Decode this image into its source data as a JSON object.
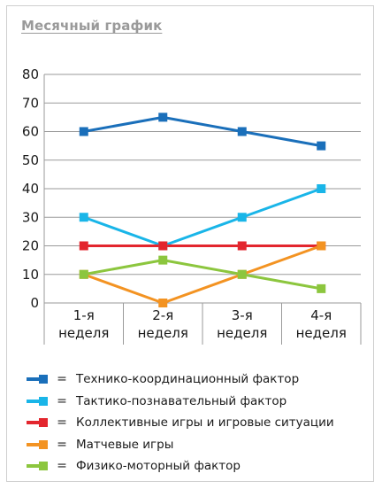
{
  "chart_data": {
    "type": "line",
    "title": "Месячный график",
    "categories": [
      "1-я неделя",
      "2-я неделя",
      "3-я неделя",
      "4-я неделя"
    ],
    "category_lines": [
      [
        "1-я",
        "неделя"
      ],
      [
        "2-я",
        "неделя"
      ],
      [
        "3-я",
        "неделя"
      ],
      [
        "4-я",
        "неделя"
      ]
    ],
    "ylim": [
      0,
      80
    ],
    "yticks": [
      0,
      10,
      20,
      30,
      40,
      50,
      60,
      70,
      80
    ],
    "grid": true,
    "legend_position": "bottom",
    "series": [
      {
        "name": "Технико-координационный фактор",
        "color": "#1a6fba",
        "values": [
          60,
          65,
          60,
          55
        ]
      },
      {
        "name": "Тактико-познавательный фактор",
        "color": "#19b5e8",
        "values": [
          30,
          20,
          30,
          40
        ]
      },
      {
        "name": "Коллективные игры и игровые ситуации",
        "color": "#e3262e",
        "values": [
          20,
          20,
          20,
          20
        ]
      },
      {
        "name": "Матчевые игры",
        "color": "#f39322",
        "values": [
          10,
          0,
          10,
          20
        ]
      },
      {
        "name": "Физико-моторный фактор",
        "color": "#8cc63e",
        "values": [
          10,
          15,
          10,
          5
        ]
      }
    ],
    "legend_separator": "="
  }
}
